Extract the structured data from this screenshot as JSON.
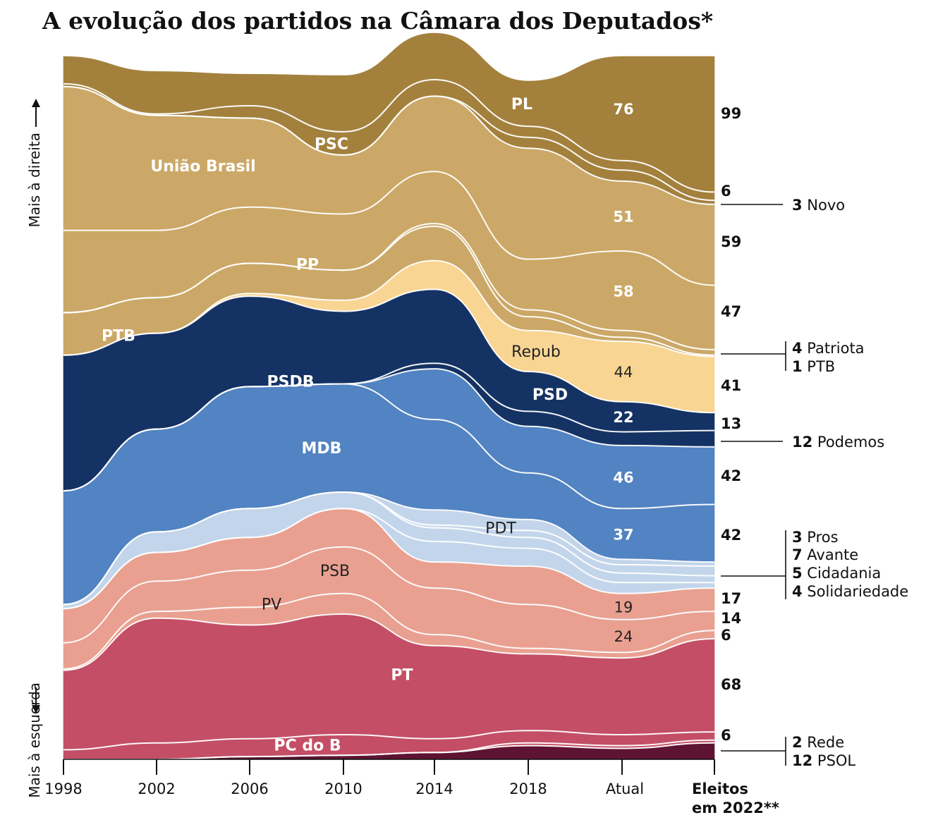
{
  "title": "A evolução dos partidos na Câmara dos Deputados*",
  "chart_data": {
    "type": "area",
    "subtype": "stacked-streamgraph",
    "categories": [
      "1998",
      "2002",
      "2006",
      "2010",
      "2014",
      "2018",
      "Atual",
      "Eleitos em 2022**"
    ],
    "ylim": [
      0,
      513
    ],
    "legend": "inline",
    "grid": false,
    "axis_side_labels": {
      "top": "Mais à direita",
      "bottom": "Mais à esquerda"
    },
    "series": [
      {
        "name": "PSOL",
        "values": [
          0,
          0,
          2,
          3,
          5,
          10,
          8,
          12
        ],
        "color": "#5e1332",
        "label_color": "#ffffff"
      },
      {
        "name": "Rede",
        "values": [
          0,
          0,
          0,
          0,
          0,
          2,
          2,
          2
        ],
        "color": "#c34e66",
        "label_color": "#ffffff"
      },
      {
        "name": "PC do B",
        "values": [
          7,
          12,
          13,
          15,
          10,
          9,
          8,
          6
        ],
        "color": "#c34e66",
        "label_color": "#ffffff",
        "label": "PC do B"
      },
      {
        "name": "PT",
        "values": [
          58,
          91,
          83,
          88,
          68,
          56,
          56,
          68
        ],
        "color": "#c34e66",
        "label_color": "#ffffff",
        "label": "PT"
      },
      {
        "name": "PV",
        "values": [
          1,
          5,
          13,
          15,
          8,
          4,
          4,
          6
        ],
        "color": "#e9a090",
        "label_color": "#222222",
        "label": "PV"
      },
      {
        "name": "PSB",
        "values": [
          19,
          22,
          27,
          34,
          34,
          32,
          24,
          14
        ],
        "color": "#e9a090",
        "label_color": "#222222",
        "label": "PSB",
        "right_label": "24"
      },
      {
        "name": "PDT",
        "values": [
          25,
          21,
          24,
          28,
          19,
          28,
          19,
          17
        ],
        "color": "#e9a090",
        "label_color": "#222222",
        "label": "PDT",
        "right_label": "19"
      },
      {
        "name": "Solidariedade",
        "values": [
          0,
          0,
          0,
          0,
          15,
          13,
          8,
          4
        ],
        "color": "#c3d5ea",
        "label_color": "#222222"
      },
      {
        "name": "Cidadania",
        "values": [
          3,
          15,
          21,
          12,
          10,
          8,
          7,
          5
        ],
        "color": "#c3d5ea",
        "label_color": "#222222"
      },
      {
        "name": "Avante",
        "values": [
          0,
          0,
          0,
          0,
          2,
          5,
          6,
          7
        ],
        "color": "#c3d5ea",
        "label_color": "#222222"
      },
      {
        "name": "Pros",
        "values": [
          0,
          0,
          0,
          0,
          11,
          8,
          4,
          3
        ],
        "color": "#c3d5ea",
        "label_color": "#222222"
      },
      {
        "name": "MDB",
        "values": [
          83,
          75,
          89,
          79,
          66,
          34,
          37,
          42
        ],
        "color": "#5283c2",
        "label_color": "#ffffff",
        "label": "MDB",
        "right_label": "37"
      },
      {
        "name": "PSD",
        "values": [
          0,
          0,
          0,
          0,
          37,
          34,
          46,
          42
        ],
        "color": "#5283c2",
        "label_color": "#ffffff",
        "label": "PSD",
        "right_label": "46"
      },
      {
        "name": "Podemos",
        "values": [
          0,
          0,
          0,
          0,
          4,
          11,
          10,
          12
        ],
        "color": "#153264",
        "label_color": "#ffffff"
      },
      {
        "name": "PSDB",
        "values": [
          99,
          70,
          66,
          53,
          54,
          29,
          22,
          13
        ],
        "color": "#153264",
        "label_color": "#ffffff",
        "label": "PSDB",
        "right_label": "22"
      },
      {
        "name": "Republicanos",
        "values": [
          0,
          0,
          2,
          8,
          21,
          30,
          44,
          41
        ],
        "color": "#f8d593",
        "label_color": "#222222",
        "label": "Repub",
        "right_label": "44"
      },
      {
        "name": "PTB",
        "values": [
          31,
          26,
          22,
          22,
          25,
          10,
          3,
          1
        ],
        "color": "#cba867",
        "label_color": "#ffffff",
        "label": "PTB"
      },
      {
        "name": "Patriota",
        "values": [
          0,
          0,
          0,
          0,
          2,
          5,
          5,
          4
        ],
        "color": "#cba867",
        "label_color": "#ffffff"
      },
      {
        "name": "PP",
        "values": [
          60,
          49,
          41,
          41,
          38,
          37,
          58,
          47
        ],
        "color": "#cba867",
        "label_color": "#ffffff",
        "label": "PP",
        "right_label": "58"
      },
      {
        "name": "União Brasil",
        "values": [
          105,
          84,
          65,
          43,
          55,
          81,
          51,
          59
        ],
        "color": "#cba867",
        "label_color": "#ffffff",
        "label": "União Brasil",
        "right_label": "51"
      },
      {
        "name": "Novo",
        "values": [
          0,
          0,
          0,
          0,
          0,
          8,
          8,
          3
        ],
        "color": "#a3813d",
        "label_color": "#ffffff"
      },
      {
        "name": "PSC",
        "values": [
          2,
          1,
          9,
          17,
          12,
          8,
          7,
          6
        ],
        "color": "#a3813d",
        "label_color": "#ffffff",
        "label": "PSC"
      },
      {
        "name": "PL",
        "values": [
          20,
          31,
          23,
          41,
          34,
          33,
          76,
          99
        ],
        "color": "#a3813d",
        "label_color": "#ffffff",
        "label": "PL",
        "right_label": "76"
      }
    ],
    "final_labels": [
      "99",
      "6",
      "59",
      "47",
      "41",
      "13",
      "42",
      "42",
      "17",
      "14",
      "6",
      "68",
      "6"
    ],
    "callouts": [
      {
        "series": "Novo",
        "number": "3",
        "name": "Novo"
      },
      {
        "series": "Patriota",
        "number": "4",
        "name": "Patriota"
      },
      {
        "series": "PTB",
        "number": "1",
        "name": "PTB"
      },
      {
        "series": "Podemos",
        "number": "12",
        "name": "Podemos"
      },
      {
        "series": "Pros",
        "number": "3",
        "name": "Pros"
      },
      {
        "series": "Avante",
        "number": "7",
        "name": "Avante"
      },
      {
        "series": "Cidadania",
        "number": "5",
        "name": "Cidadania"
      },
      {
        "series": "Solidariedade",
        "number": "4",
        "name": "Solidariedade"
      },
      {
        "series": "Rede",
        "number": "2",
        "name": "Rede"
      },
      {
        "series": "PSOL",
        "number": "12",
        "name": "PSOL"
      }
    ]
  }
}
